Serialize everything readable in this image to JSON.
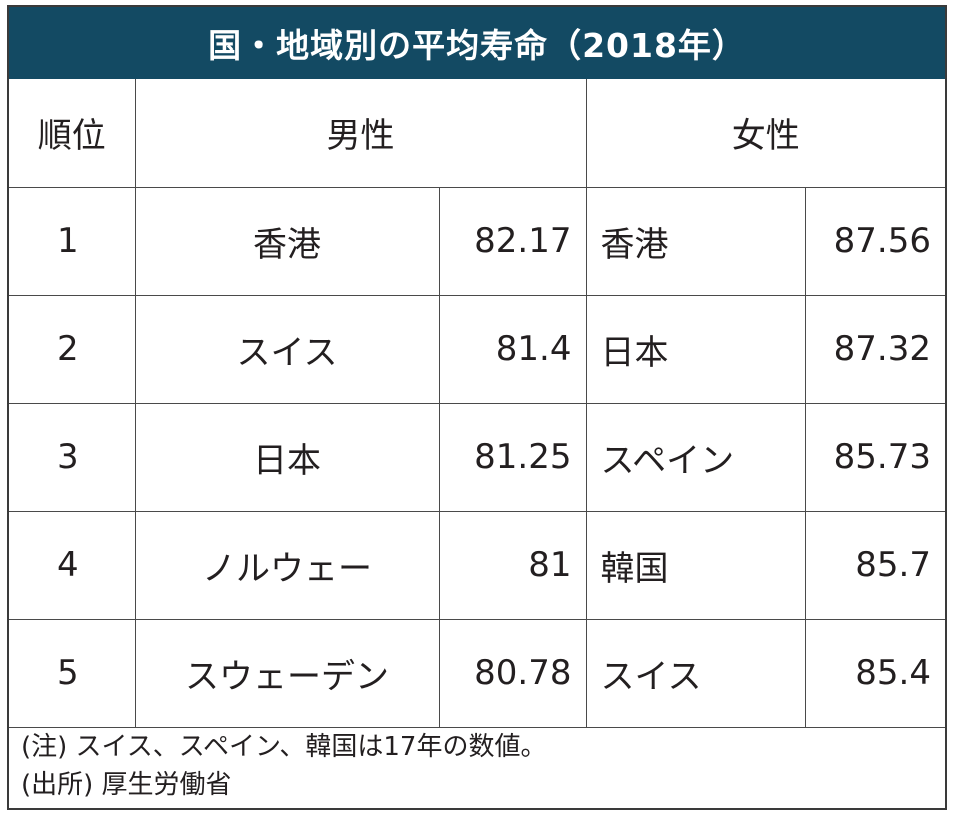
{
  "title": "国・地域別の平均寿命（2018年）",
  "columns": {
    "rank": "順位",
    "male": "男性",
    "female": "女性"
  },
  "rows": [
    {
      "rank": "1",
      "male_name": "香港",
      "male_value": "82.17",
      "female_name": "香港",
      "female_value": "87.56"
    },
    {
      "rank": "2",
      "male_name": "スイス",
      "male_value": "81.4",
      "female_name": "日本",
      "female_value": "87.32"
    },
    {
      "rank": "3",
      "male_name": "日本",
      "male_value": "81.25",
      "female_name": "スペイン",
      "female_value": "85.73"
    },
    {
      "rank": "4",
      "male_name": "ノルウェー",
      "male_value": "81",
      "female_name": "韓国",
      "female_value": "85.7"
    },
    {
      "rank": "5",
      "male_name": "スウェーデン",
      "male_value": "80.78",
      "female_name": "スイス",
      "female_value": "85.4"
    }
  ],
  "notes": {
    "note": "(注) スイス、スペイン、韓国は17年の数値。",
    "source": "(出所) 厚生労働省"
  },
  "colors": {
    "title_background": "#134a63",
    "title_text": "#ffffff"
  },
  "chart_data": {
    "type": "table",
    "title": "国・地域別の平均寿命（2018年）",
    "columns": [
      "順位",
      "男性",
      "男性",
      "女性",
      "女性"
    ],
    "male": [
      {
        "rank": 1,
        "name": "香港",
        "value": 82.17
      },
      {
        "rank": 2,
        "name": "スイス",
        "value": 81.4
      },
      {
        "rank": 3,
        "name": "日本",
        "value": 81.25
      },
      {
        "rank": 4,
        "name": "ノルウェー",
        "value": 81
      },
      {
        "rank": 5,
        "name": "スウェーデン",
        "value": 80.78
      }
    ],
    "female": [
      {
        "rank": 1,
        "name": "香港",
        "value": 87.56
      },
      {
        "rank": 2,
        "name": "日本",
        "value": 87.32
      },
      {
        "rank": 3,
        "name": "スペイン",
        "value": 85.73
      },
      {
        "rank": 4,
        "name": "韓国",
        "value": 85.7
      },
      {
        "rank": 5,
        "name": "スイス",
        "value": 85.4
      }
    ]
  }
}
